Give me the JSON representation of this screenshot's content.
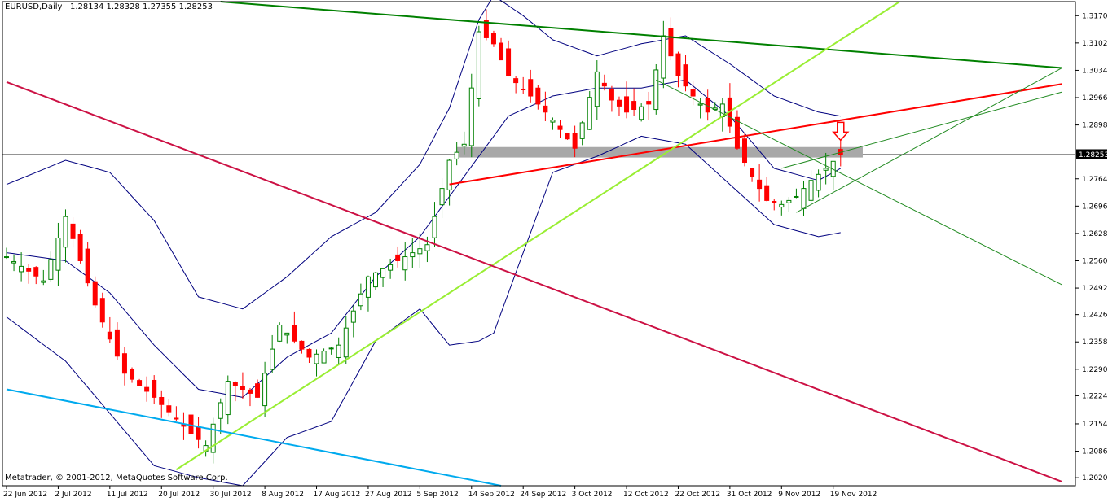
{
  "header": {
    "symbol": "EURUSD,Daily",
    "ohlc": "1.28134 1.28328 1.27355 1.28253"
  },
  "footer": {
    "copyright": "Metatrader, © 2001-2012, MetaQuotes Software Corp."
  },
  "chart_data": {
    "type": "candlestick",
    "ylim": [
      1.2,
      1.3205
    ],
    "y_ticks": [
      "1.31700",
      "1.31020",
      "1.30340",
      "1.29660",
      "1.28980",
      "1.27640",
      "1.26960",
      "1.26280",
      "1.25600",
      "1.24920",
      "1.24260",
      "1.23580",
      "1.22900",
      "1.22240",
      "1.21540",
      "1.20860",
      "1.20200"
    ],
    "current_price_label": "1.28253",
    "current_price": 1.28253,
    "x_labels": [
      "22 Jun 2012",
      "2 Jul 2012",
      "11 Jul 2012",
      "20 Jul 2012",
      "30 Jul 2012",
      "8 Aug 2012",
      "17 Aug 2012",
      "27 Aug 2012",
      "5 Sep 2012",
      "14 Sep 2012",
      "24 Sep 2012",
      "3 Oct 2012",
      "12 Oct 2012",
      "22 Oct 2012",
      "31 Oct 2012",
      "9 Nov 2012",
      "19 Nov 2012"
    ],
    "label_bar_index": [
      0,
      7,
      14,
      21,
      28,
      35,
      42,
      49,
      56,
      63,
      70,
      77,
      84,
      91,
      98,
      105,
      112
    ],
    "close_points": [
      [
        0,
        1.257
      ],
      [
        5,
        1.251
      ],
      [
        8,
        1.267
      ],
      [
        12,
        1.245
      ],
      [
        16,
        1.228
      ],
      [
        20,
        1.222
      ],
      [
        25,
        1.213
      ],
      [
        27,
        1.21
      ],
      [
        30,
        1.226
      ],
      [
        34,
        1.222
      ],
      [
        37,
        1.24
      ],
      [
        41,
        1.232
      ],
      [
        45,
        1.235
      ],
      [
        49,
        1.252
      ],
      [
        53,
        1.256
      ],
      [
        57,
        1.26
      ],
      [
        60,
        1.281
      ],
      [
        62,
        1.285
      ],
      [
        64,
        1.313
      ],
      [
        66,
        1.31
      ],
      [
        68,
        1.302
      ],
      [
        71,
        1.297
      ],
      [
        74,
        1.291
      ],
      [
        77,
        1.284
      ],
      [
        80,
        1.303
      ],
      [
        82,
        1.296
      ],
      [
        84,
        1.293
      ],
      [
        87,
        1.295
      ],
      [
        89,
        1.312
      ],
      [
        91,
        1.302
      ],
      [
        93,
        1.297
      ],
      [
        95,
        1.293
      ],
      [
        97,
        1.295
      ],
      [
        99,
        1.284
      ],
      [
        101,
        1.277
      ],
      [
        103,
        1.271
      ],
      [
        105,
        1.27
      ],
      [
        107,
        1.272
      ],
      [
        109,
        1.276
      ],
      [
        111,
        1.279
      ],
      [
        113,
        1.2825
      ]
    ],
    "bollinger_mid": [
      [
        0,
        1.258
      ],
      [
        8,
        1.256
      ],
      [
        14,
        1.248
      ],
      [
        20,
        1.235
      ],
      [
        26,
        1.224
      ],
      [
        32,
        1.222
      ],
      [
        38,
        1.232
      ],
      [
        44,
        1.238
      ],
      [
        50,
        1.252
      ],
      [
        56,
        1.262
      ],
      [
        62,
        1.277
      ],
      [
        68,
        1.292
      ],
      [
        74,
        1.297
      ],
      [
        80,
        1.299
      ],
      [
        86,
        1.299
      ],
      [
        92,
        1.301
      ],
      [
        98,
        1.292
      ],
      [
        104,
        1.279
      ],
      [
        110,
        1.276
      ],
      [
        113,
        1.279
      ]
    ],
    "bollinger_upper": [
      [
        0,
        1.275
      ],
      [
        8,
        1.281
      ],
      [
        14,
        1.278
      ],
      [
        20,
        1.266
      ],
      [
        26,
        1.247
      ],
      [
        32,
        1.244
      ],
      [
        38,
        1.252
      ],
      [
        44,
        1.262
      ],
      [
        50,
        1.268
      ],
      [
        56,
        1.28
      ],
      [
        60,
        1.294
      ],
      [
        64,
        1.316
      ],
      [
        66,
        1.322
      ],
      [
        70,
        1.317
      ],
      [
        74,
        1.311
      ],
      [
        80,
        1.307
      ],
      [
        86,
        1.31
      ],
      [
        92,
        1.312
      ],
      [
        98,
        1.305
      ],
      [
        104,
        1.297
      ],
      [
        110,
        1.293
      ],
      [
        113,
        1.292
      ]
    ],
    "bollinger_lower": [
      [
        0,
        1.242
      ],
      [
        8,
        1.231
      ],
      [
        14,
        1.218
      ],
      [
        20,
        1.205
      ],
      [
        26,
        1.202
      ],
      [
        32,
        1.2
      ],
      [
        38,
        1.212
      ],
      [
        44,
        1.216
      ],
      [
        50,
        1.236
      ],
      [
        56,
        1.244
      ],
      [
        60,
        1.235
      ],
      [
        64,
        1.236
      ],
      [
        66,
        1.238
      ],
      [
        70,
        1.258
      ],
      [
        74,
        1.278
      ],
      [
        80,
        1.282
      ],
      [
        86,
        1.287
      ],
      [
        92,
        1.285
      ],
      [
        98,
        1.275
      ],
      [
        104,
        1.265
      ],
      [
        110,
        1.262
      ],
      [
        113,
        1.263
      ]
    ],
    "support_zone": {
      "from": 1.2817,
      "to": 1.2843,
      "x_from": 61,
      "x_to": 116
    },
    "signal": {
      "type": "down-arrow",
      "bar": 113,
      "price": 1.286
    },
    "trendlines": [
      {
        "name": "long-term-resistance",
        "color": "#008000",
        "from": [
          29,
          1.3205
        ],
        "to": [
          143,
          1.304
        ]
      },
      {
        "name": "red-rising",
        "color": "#ff0000",
        "from": [
          60,
          1.275
        ],
        "to": [
          143,
          1.3
        ]
      },
      {
        "name": "lime-support",
        "color": "#99ee33",
        "from": [
          23,
          1.204
        ],
        "to": [
          121,
          1.3205
        ]
      },
      {
        "name": "crimson-falling",
        "color": "#cc1144",
        "from": [
          0,
          1.3005
        ],
        "to": [
          143,
          1.201
        ]
      },
      {
        "name": "cyan-falling",
        "color": "#00aaee",
        "from": [
          0,
          1.224
        ],
        "to": [
          67,
          1.2
        ]
      },
      {
        "name": "thin-green-down",
        "color": "#228b22",
        "from": [
          88,
          1.301
        ],
        "to": [
          143,
          1.25
        ]
      },
      {
        "name": "thin-green-up-1",
        "color": "#228b22",
        "from": [
          105,
          1.279
        ],
        "to": [
          143,
          1.298
        ]
      },
      {
        "name": "thin-green-up-2",
        "color": "#228b22",
        "from": [
          107,
          1.268
        ],
        "to": [
          143,
          1.304
        ]
      }
    ]
  }
}
